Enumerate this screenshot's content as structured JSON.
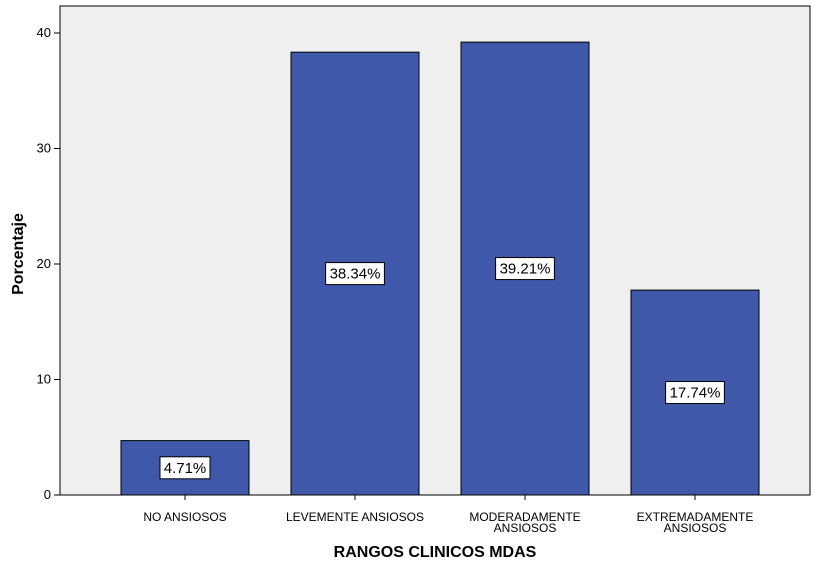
{
  "chart_data": {
    "type": "bar",
    "categories": [
      [
        "NO ANSIOSOS"
      ],
      [
        "LEVEMENTE ANSIOSOS"
      ],
      [
        "MODERADAMENTE",
        "ANSIOSOS"
      ],
      [
        "EXTREMADAMENTE",
        "ANSIOSOS"
      ]
    ],
    "values": [
      4.71,
      38.34,
      39.21,
      17.74
    ],
    "data_labels": [
      "4.71%",
      "38.34%",
      "39.21%",
      "17.74%"
    ],
    "xlabel": "RANGOS CLINICOS MDAS",
    "ylabel": "Porcentaje",
    "ylim": [
      0,
      40
    ],
    "yticks": [
      0,
      10,
      20,
      30,
      40
    ],
    "grid": false,
    "colors": {
      "bar_fill": "#3f58aa",
      "bar_stroke": "#000000",
      "plot_background": "#efefef",
      "label_box": "#ffffff"
    }
  }
}
